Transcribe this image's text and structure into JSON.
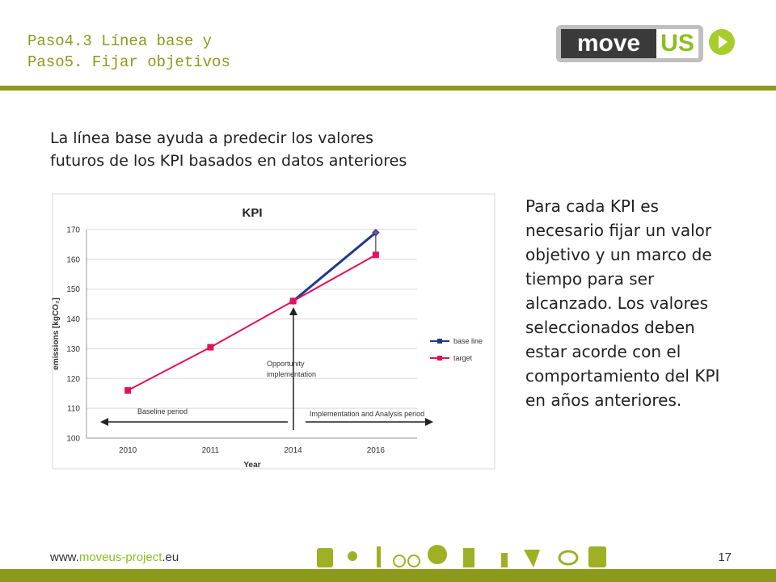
{
  "header": {
    "title_lines": [
      "Paso4.3 Línea base y",
      "Paso5. Fijar objetivos"
    ]
  },
  "logo": {
    "left": "move",
    "right": "US"
  },
  "intro_lines": [
    "La línea base ayuda a predecir los valores",
    "futuros de los KPI basados en datos anteriores"
  ],
  "side_lines": [
    "Para cada KPI es",
    "necesario fijar un valor",
    "objetivo y un marco de",
    "tiempo para ser",
    "alcanzado. Los valores",
    "seleccionados deben",
    "estar acorde con el",
    "comportamiento del KPI",
    "en años anteriores."
  ],
  "chart_data": {
    "type": "line",
    "title": "KPI",
    "x_label": "Year",
    "y_label": "emissions [kgCO₂]",
    "categories": [
      "2010",
      "2011",
      "2014",
      "2016"
    ],
    "series": [
      {
        "name": "base line",
        "color": "#1f3a8a",
        "values": [
          null,
          null,
          146,
          169
        ]
      },
      {
        "name": "target",
        "color": "#e0125e",
        "values": [
          116,
          130.5,
          146,
          161.5
        ]
      }
    ],
    "ylim": [
      100,
      170
    ],
    "yticks": [
      100,
      110,
      120,
      130,
      140,
      150,
      160,
      170
    ],
    "annotations": {
      "opportunity": [
        "Opportunity",
        "implementation"
      ],
      "baseline_period": "Baseline period",
      "implementation_period": "Implementation and Analysis period"
    }
  },
  "footer": {
    "url_prefix": "www.",
    "url_main": "moveus-project",
    "url_suffix": ".eu",
    "page": "17"
  }
}
